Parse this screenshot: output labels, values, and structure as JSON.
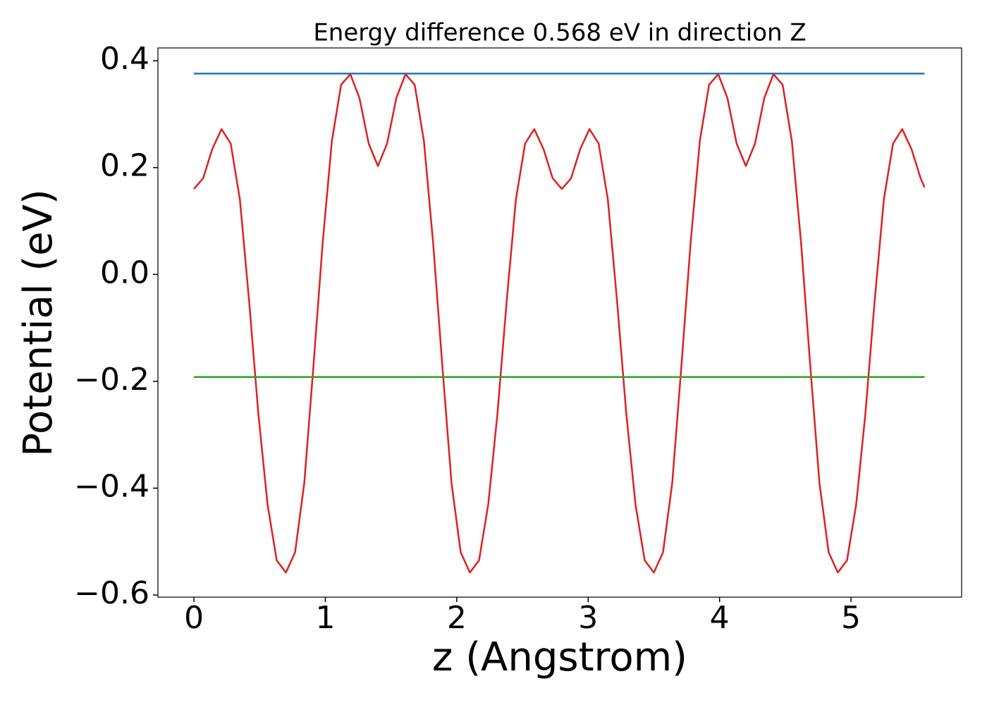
{
  "chart_data": {
    "type": "line",
    "title": "Energy difference 0.568 eV in direction Z",
    "x_label": "z (Angstrom)",
    "y_label": "Potential (eV)",
    "xlim": [
      -0.274,
      5.842
    ],
    "ylim": [
      -0.604,
      0.424
    ],
    "xticks": [
      0,
      1,
      2,
      3,
      4,
      5
    ],
    "yticks": [
      {
        "value": -0.6,
        "label": "−0.6"
      },
      {
        "value": -0.4,
        "label": "−0.4"
      },
      {
        "value": -0.2,
        "label": "−0.2"
      },
      {
        "value": 0,
        "label": "0.0"
      },
      0.2,
      0.4
    ],
    "grid": false,
    "series": [
      {
        "color": "#e02020",
        "x": [
          0,
          0.07,
          0.14,
          0.21,
          0.28,
          0.35,
          0.42,
          0.49,
          0.56,
          0.63,
          0.7,
          0.77,
          0.84,
          0.91,
          0.98,
          1.05,
          1.12,
          1.19,
          1.26,
          1.33,
          1.4,
          1.47,
          1.54,
          1.61,
          1.68,
          1.75,
          1.82,
          1.89,
          1.96,
          2.03,
          2.1,
          2.17,
          2.24,
          2.31,
          2.38,
          2.45,
          2.52,
          2.59,
          2.66,
          2.73,
          2.8,
          2.87,
          2.94,
          3.01,
          3.08,
          3.15,
          3.22,
          3.29,
          3.36,
          3.43,
          3.5,
          3.57,
          3.64,
          3.71,
          3.78,
          3.85,
          3.92,
          3.99,
          4.06,
          4.13,
          4.2,
          4.27,
          4.34,
          4.41,
          4.48,
          4.55,
          4.62,
          4.69,
          4.76,
          4.83,
          4.9,
          4.97,
          5.04,
          5.11,
          5.18,
          5.25,
          5.32,
          5.39,
          5.46,
          5.53,
          5.56
        ],
        "values": [
          0.16,
          0.18,
          0.235,
          0.272,
          0.245,
          0.14,
          -0.05,
          -0.26,
          -0.43,
          -0.535,
          -0.558,
          -0.52,
          -0.39,
          -0.17,
          0.06,
          0.25,
          0.355,
          0.375,
          0.33,
          0.245,
          0.203,
          0.245,
          0.33,
          0.375,
          0.355,
          0.25,
          0.06,
          -0.17,
          -0.39,
          -0.52,
          -0.558,
          -0.535,
          -0.43,
          -0.26,
          -0.05,
          0.14,
          0.245,
          0.272,
          0.235,
          0.18,
          0.16,
          0.18,
          0.235,
          0.272,
          0.245,
          0.14,
          -0.05,
          -0.26,
          -0.43,
          -0.535,
          -0.558,
          -0.52,
          -0.39,
          -0.17,
          0.06,
          0.25,
          0.355,
          0.375,
          0.33,
          0.245,
          0.203,
          0.245,
          0.33,
          0.375,
          0.355,
          0.25,
          0.06,
          -0.17,
          -0.39,
          -0.52,
          -0.558,
          -0.535,
          -0.43,
          -0.26,
          -0.05,
          0.14,
          0.245,
          0.272,
          0.235,
          0.18,
          0.163
        ]
      },
      {
        "color": "#1f77b4",
        "x": [
          0,
          5.56
        ],
        "values": [
          0.376,
          0.376
        ]
      },
      {
        "color": "#2ca02c",
        "x": [
          0,
          5.56
        ],
        "values": [
          -0.192,
          -0.192
        ]
      }
    ]
  }
}
